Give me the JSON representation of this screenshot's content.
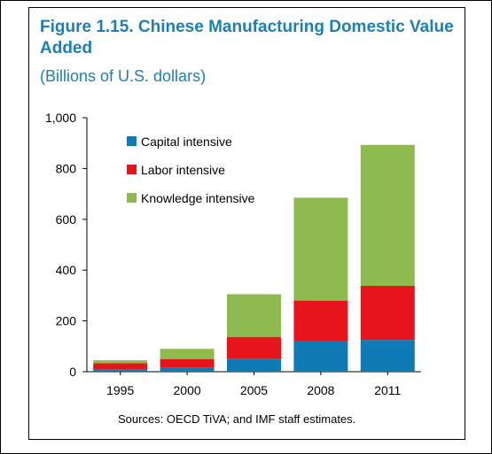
{
  "figure": {
    "title": "Figure 1.15. Chinese Manufacturing Domestic Value Added",
    "subtitle": "(Billions of U.S. dollars)",
    "source": "Sources: OECD TiVA; and IMF staff estimates."
  },
  "colors": {
    "title": "#1f7fb3",
    "capital": "#0f7bb6",
    "labor": "#e8141b",
    "knowledge": "#8fbb4e"
  },
  "chart_data": {
    "type": "bar",
    "stacked": true,
    "categories": [
      "1995",
      "2000",
      "2005",
      "2008",
      "2011"
    ],
    "series": [
      {
        "name": "Capital intensive",
        "values": [
          8,
          15,
          52,
          122,
          125
        ],
        "color": "#0f7bb6"
      },
      {
        "name": "Labor intensive",
        "values": [
          25,
          35,
          85,
          158,
          213
        ],
        "color": "#e8141b"
      },
      {
        "name": "Knowledge intensive",
        "values": [
          12,
          40,
          168,
          405,
          555
        ],
        "color": "#8fbb4e"
      }
    ],
    "ylim": [
      0,
      1000
    ],
    "yticks": [
      0,
      200,
      400,
      600,
      800,
      1000
    ],
    "ytick_labels": [
      "0",
      "200",
      "400",
      "600",
      "800",
      "1,000"
    ],
    "grid": false,
    "legend_position": "top-left"
  }
}
